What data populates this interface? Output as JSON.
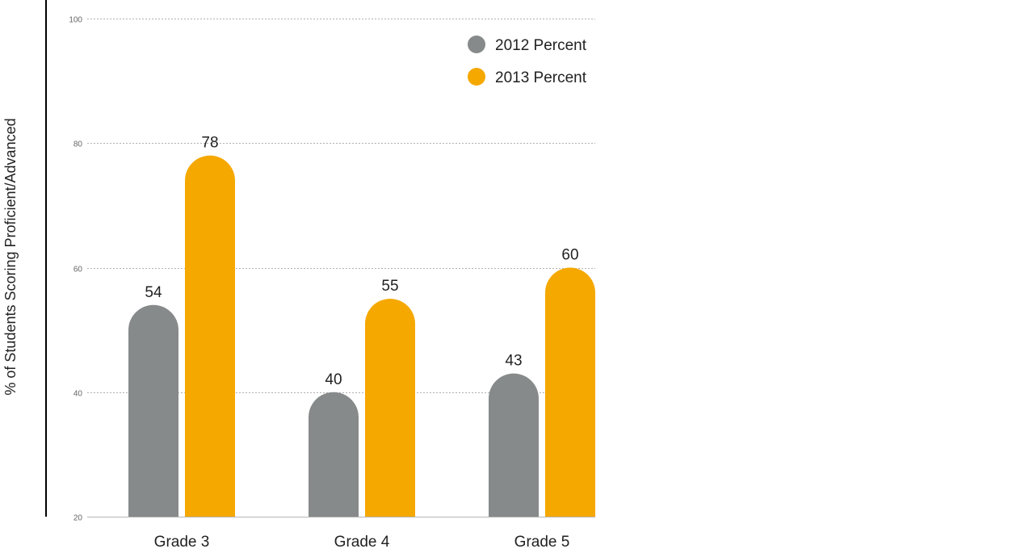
{
  "chart_data": {
    "type": "bar",
    "title": "",
    "xlabel": "",
    "ylabel": "% of Students Scoring Proficient/Advanced",
    "ylim": [
      20,
      100
    ],
    "yticks": [
      20,
      40,
      60,
      80,
      100
    ],
    "grid": true,
    "legend_position": "top-right",
    "categories": [
      "Grade 3",
      "Grade 4",
      "Grade 5"
    ],
    "series": [
      {
        "name": "2012 Percent",
        "color": "#878a8a",
        "values": [
          54,
          40,
          43
        ]
      },
      {
        "name": "2013 Percent",
        "color": "#f5a800",
        "values": [
          78,
          55,
          60
        ]
      }
    ]
  }
}
